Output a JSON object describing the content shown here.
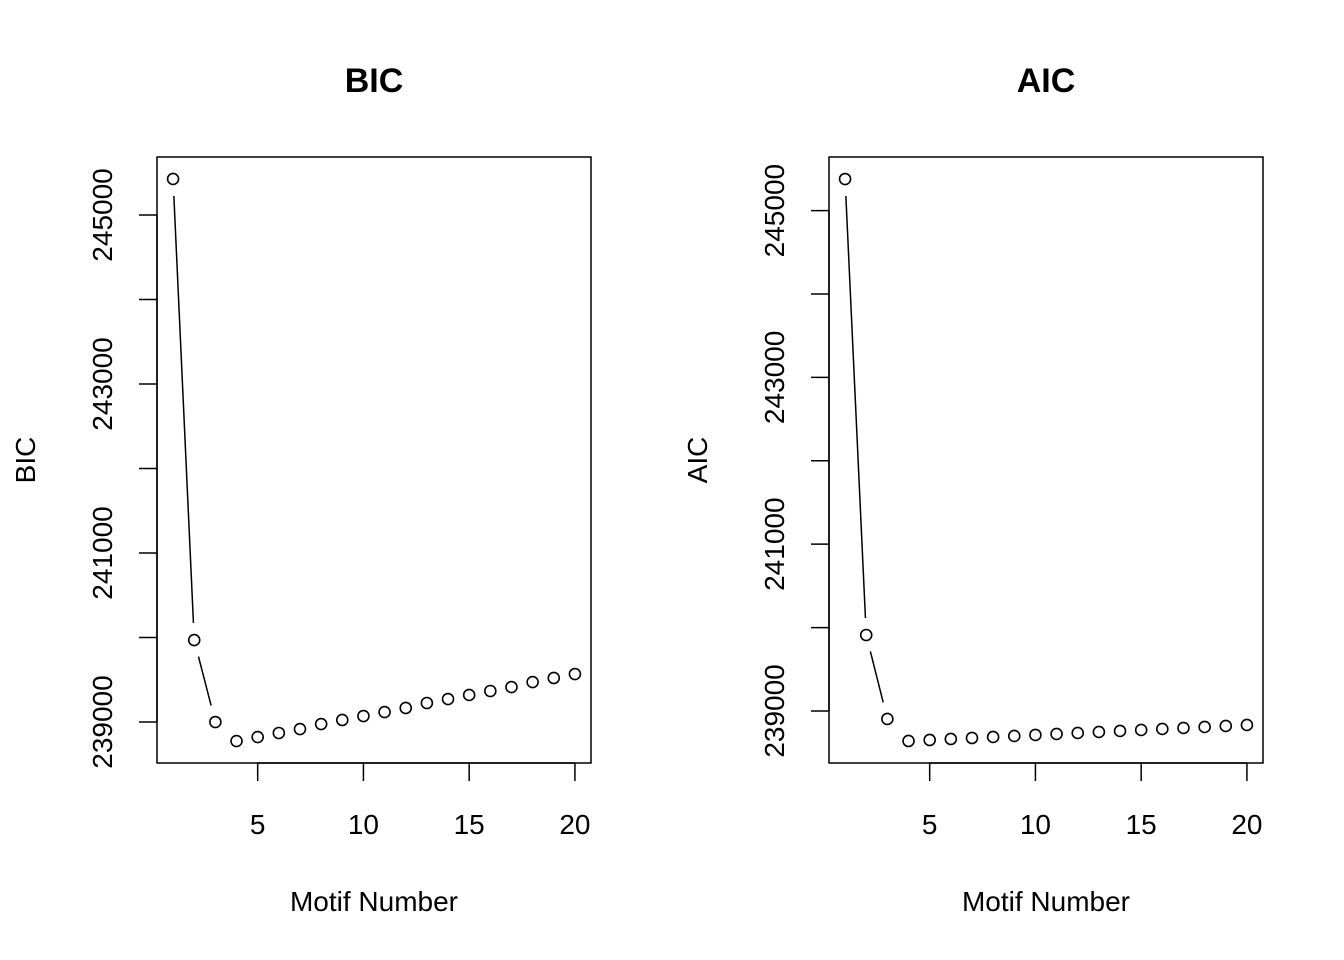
{
  "chart_data": [
    {
      "type": "line",
      "title": "BIC",
      "xlabel": "Motif Number",
      "ylabel": "BIC",
      "x": [
        1,
        2,
        3,
        4,
        5,
        6,
        7,
        8,
        9,
        10,
        11,
        12,
        13,
        14,
        15,
        16,
        17,
        18,
        19,
        20
      ],
      "values": [
        245426,
        239970,
        239000,
        238775,
        238822,
        238870,
        238917,
        238976,
        239024,
        239071,
        239118,
        239166,
        239225,
        239272,
        239320,
        239367,
        239414,
        239473,
        239521,
        239568
      ],
      "xlim": [
        0.24,
        20.76
      ],
      "ylim": [
        238515,
        245686
      ],
      "xticks": [
        5,
        10,
        15,
        20
      ],
      "yticks_labeled": [
        239000,
        241000,
        243000,
        245000
      ],
      "yticks_minor": [
        240000,
        242000,
        244000
      ],
      "grid": false
    },
    {
      "type": "line",
      "title": "AIC",
      "xlabel": "Motif Number",
      "ylabel": "AIC",
      "x": [
        1,
        2,
        3,
        4,
        5,
        6,
        7,
        8,
        9,
        10,
        11,
        12,
        13,
        14,
        15,
        16,
        17,
        18,
        19,
        20
      ],
      "values": [
        245379,
        239911,
        238904,
        238640,
        238652,
        238664,
        238676,
        238688,
        238700,
        238712,
        238724,
        238736,
        238748,
        238760,
        238772,
        238784,
        238796,
        238808,
        238820,
        238832
      ],
      "xlim": [
        0.24,
        20.76
      ],
      "ylim": [
        238376,
        245643
      ],
      "xticks": [
        5,
        10,
        15,
        20
      ],
      "yticks_labeled": [
        239000,
        241000,
        243000,
        245000
      ],
      "yticks_minor": [
        240000,
        242000,
        244000
      ],
      "grid": false
    }
  ]
}
